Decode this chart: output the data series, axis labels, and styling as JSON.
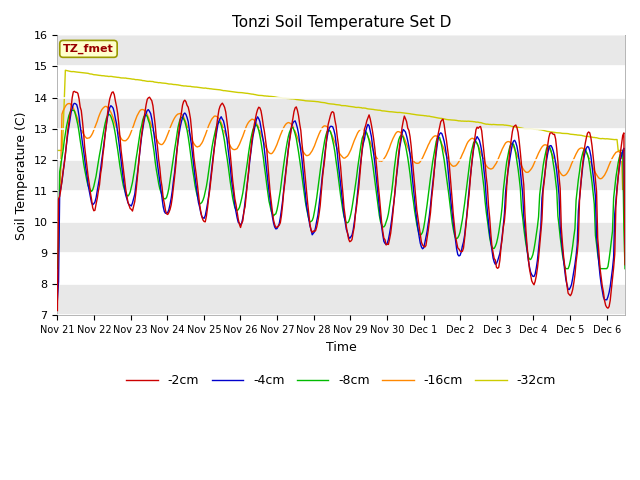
{
  "title": "Tonzi Soil Temperature Set D",
  "xlabel": "Time",
  "ylabel": "Soil Temperature (C)",
  "ylim": [
    7.0,
    16.0
  ],
  "yticks": [
    7.0,
    8.0,
    9.0,
    10.0,
    11.0,
    12.0,
    13.0,
    14.0,
    15.0,
    16.0
  ],
  "legend_labels": [
    "-2cm",
    "-4cm",
    "-8cm",
    "-16cm",
    "-32cm"
  ],
  "legend_colors": [
    "#cc0000",
    "#0000cc",
    "#00bb00",
    "#ff8800",
    "#cccc00"
  ],
  "annotation_text": "TZ_fmet",
  "annotation_bg": "#ffffcc",
  "annotation_border": "#999900",
  "annotation_textcolor": "#990000",
  "fig_bg": "#ffffff",
  "plot_bg": "#ffffff",
  "grid_color": "#dddddd",
  "band_color": "#e8e8e8",
  "n_points": 500,
  "start_day": 0,
  "end_day": 15.5,
  "xtick_positions": [
    0,
    1,
    2,
    3,
    4,
    5,
    6,
    7,
    8,
    9,
    10,
    11,
    12,
    13,
    14,
    15
  ],
  "xtick_labels": [
    "Nov 21",
    "Nov 22",
    "Nov 23",
    "Nov 24",
    "Nov 25",
    "Nov 26",
    "Nov 27",
    "Nov 28",
    "Nov 29",
    "Nov 30",
    "Dec 1",
    "Dec 2",
    "Dec 3",
    "Dec 4",
    "Dec 5",
    "Dec 6"
  ]
}
